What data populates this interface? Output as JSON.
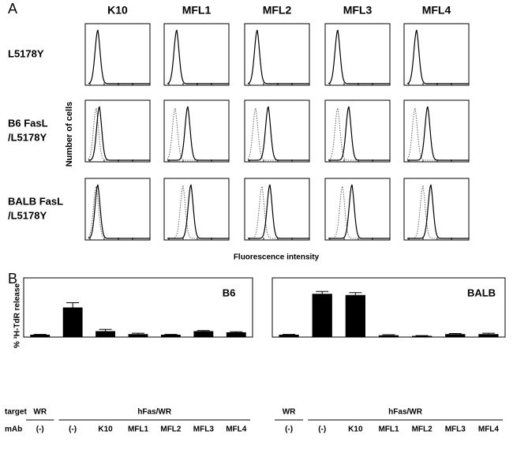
{
  "panel_a": {
    "letter": "A",
    "columns": [
      "K10",
      "MFL1",
      "MFL2",
      "MFL3",
      "MFL4"
    ],
    "rows": [
      [
        "L5178Y"
      ],
      [
        "B6 FasL",
        "/L5178Y"
      ],
      [
        "BALB FasL",
        "/L5178Y"
      ]
    ],
    "y_label": "Number of cells",
    "x_label": "Fluorescence intensity"
  },
  "panel_b": {
    "letter": "B",
    "y_label": "% ³H-TdR release",
    "target_label": "target",
    "mab_label": "mAb"
  },
  "chart_data": [
    {
      "type": "bar",
      "title": "B6",
      "color": "#000000",
      "ylim": [
        0,
        100
      ],
      "groups": [
        {
          "label": "WR",
          "categories": [
            "(-)"
          ]
        },
        {
          "label": "hFas/WR",
          "categories": [
            "(-)",
            "K10",
            "MFL1",
            "MFL2",
            "MFL3",
            "MFL4"
          ]
        }
      ],
      "values": [
        4,
        50,
        10,
        5,
        4,
        10,
        8
      ],
      "errors": [
        0.5,
        8,
        3,
        1.5,
        0.5,
        1,
        1
      ]
    },
    {
      "type": "bar",
      "title": "BALB",
      "color": "#000000",
      "ylim": [
        0,
        100
      ],
      "groups": [
        {
          "label": "WR",
          "categories": [
            "(-)"
          ]
        },
        {
          "label": "hFas/WR",
          "categories": [
            "(-)",
            "K10",
            "MFL1",
            "MFL2",
            "MFL3",
            "MFL4"
          ]
        }
      ],
      "values": [
        4,
        73,
        71,
        3,
        2,
        5,
        5
      ],
      "errors": [
        0.5,
        4,
        4,
        1,
        0.5,
        1,
        1.5
      ]
    }
  ]
}
